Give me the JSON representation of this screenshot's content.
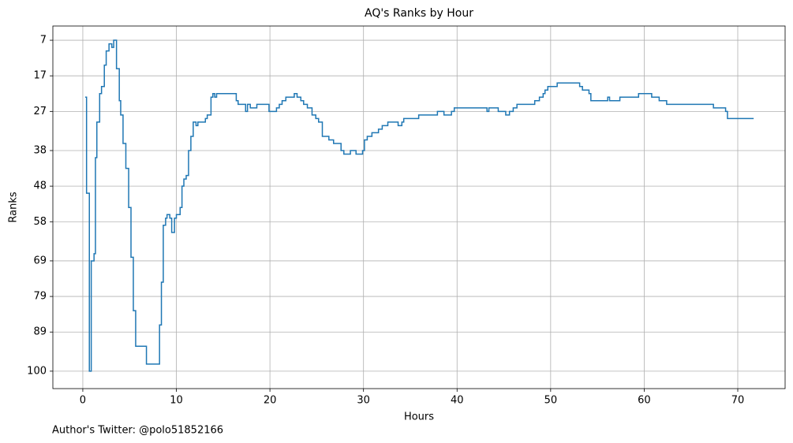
{
  "chart_data": {
    "type": "line",
    "drawstyle": "steps-post",
    "title": "AQ's Ranks by Hour",
    "x_label": "Hours",
    "y_label": "Ranks",
    "footnote": "Author's Twitter: @polo51852166",
    "color": "#1f77b4",
    "grid": true,
    "xlim": [
      -3.2,
      75.06
    ],
    "ylim": [
      104.9,
      3.0
    ],
    "xticks": [
      0,
      10,
      20,
      30,
      40,
      50,
      60,
      70
    ],
    "yticks": [
      7,
      17,
      27,
      38,
      48,
      58,
      69,
      79,
      89,
      100
    ],
    "x": [
      0.25,
      0.4,
      0.7,
      0.9,
      1.2,
      1.35,
      1.5,
      1.8,
      2.0,
      2.3,
      2.5,
      2.8,
      3.1,
      3.3,
      3.6,
      3.9,
      4.05,
      4.3,
      4.6,
      4.9,
      5.15,
      5.4,
      5.65,
      6.8,
      8.2,
      8.4,
      8.6,
      8.85,
      9.0,
      9.3,
      9.5,
      9.8,
      10.0,
      10.4,
      10.6,
      10.8,
      11.05,
      11.3,
      11.55,
      11.8,
      12.1,
      12.3,
      13.1,
      13.3,
      13.7,
      13.9,
      14.1,
      14.3,
      16.4,
      16.6,
      17.4,
      17.6,
      17.9,
      18.6,
      19.9,
      20.7,
      21.0,
      21.3,
      21.7,
      22.6,
      22.9,
      23.3,
      23.6,
      24.0,
      24.5,
      24.9,
      25.2,
      25.6,
      26.3,
      26.8,
      27.6,
      27.9,
      28.6,
      29.2,
      29.9,
      30.1,
      30.4,
      30.9,
      31.6,
      32.0,
      32.6,
      33.7,
      34.1,
      34.3,
      35.9,
      37.9,
      38.6,
      39.4,
      39.7,
      43.2,
      43.4,
      44.4,
      45.2,
      45.6,
      46.0,
      46.4,
      48.3,
      48.8,
      49.2,
      49.4,
      49.7,
      50.0,
      50.7,
      53.1,
      53.4,
      54.1,
      54.3,
      56.1,
      56.3,
      57.4,
      59.4,
      60.8,
      61.6,
      62.4,
      67.4,
      68.7,
      68.9,
      71.7
    ],
    "values": [
      23,
      50,
      100,
      69,
      67,
      40,
      30,
      22,
      20,
      14,
      10,
      8,
      9,
      7,
      15,
      24,
      28,
      36,
      43,
      54,
      68,
      83,
      93,
      98,
      87,
      75,
      59,
      57,
      56,
      57,
      61,
      57,
      56,
      54,
      48,
      46,
      45,
      38,
      34,
      30,
      31,
      30,
      29,
      28,
      23,
      22,
      23,
      22,
      24,
      25,
      27,
      25,
      26,
      25,
      27,
      26,
      25,
      24,
      23,
      22,
      23,
      24,
      25,
      26,
      28,
      29,
      30,
      34,
      35,
      36,
      38,
      39,
      38,
      39,
      38,
      35,
      34,
      33,
      32,
      31,
      30,
      31,
      30,
      29,
      28,
      27,
      28,
      27,
      26,
      27,
      26,
      27,
      28,
      27,
      26,
      25,
      24,
      23,
      22,
      21,
      20,
      20,
      19,
      20,
      21,
      22,
      24,
      23,
      24,
      23,
      22,
      23,
      24,
      25,
      26,
      27,
      29,
      29
    ]
  }
}
